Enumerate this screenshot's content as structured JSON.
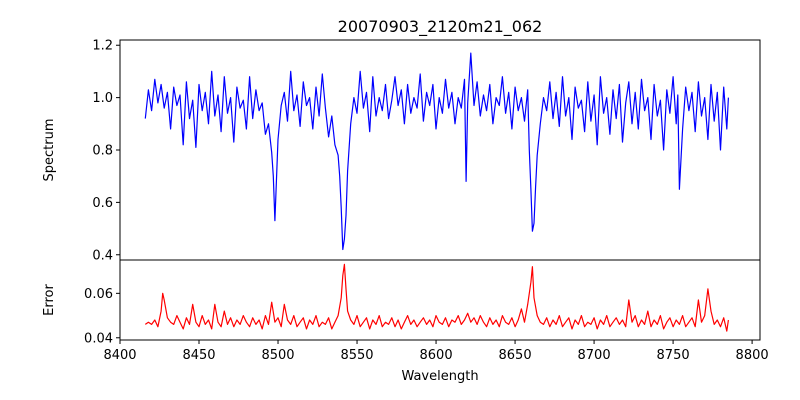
{
  "chart_data": [
    {
      "type": "line",
      "title": "20070903_2120m21_062",
      "xlabel": "",
      "ylabel": "Spectrum",
      "xlim": [
        8400,
        8805
      ],
      "ylim": [
        0.38,
        1.22
      ],
      "yticks": [
        "0.4",
        "0.6",
        "0.8",
        "1.0",
        "1.2"
      ],
      "xticks_visible": false,
      "series": [
        {
          "color": "#0000ff",
          "x": [
            8416,
            8418,
            8420,
            8422,
            8424,
            8426,
            8428,
            8430,
            8432,
            8434,
            8436,
            8438,
            8440,
            8442,
            8444,
            8446,
            8448,
            8450,
            8452,
            8454,
            8456,
            8458,
            8460,
            8462,
            8464,
            8466,
            8468,
            8470,
            8472,
            8474,
            8476,
            8478,
            8480,
            8482,
            8484,
            8486,
            8488,
            8490,
            8492,
            8494,
            8496,
            8497,
            8498,
            8499,
            8500,
            8502,
            8504,
            8506,
            8508,
            8510,
            8512,
            8514,
            8516,
            8518,
            8520,
            8522,
            8524,
            8526,
            8528,
            8530,
            8532,
            8534,
            8536,
            8538,
            8539,
            8540,
            8541,
            8542,
            8543,
            8544,
            8546,
            8548,
            8550,
            8552,
            8554,
            8556,
            8558,
            8560,
            8562,
            8564,
            8566,
            8568,
            8570,
            8572,
            8574,
            8576,
            8578,
            8580,
            8582,
            8584,
            8586,
            8588,
            8590,
            8592,
            8594,
            8596,
            8598,
            8600,
            8602,
            8604,
            8606,
            8608,
            8610,
            8612,
            8614,
            8616,
            8618,
            8619,
            8620,
            8622,
            8624,
            8626,
            8628,
            8630,
            8632,
            8634,
            8636,
            8638,
            8640,
            8642,
            8644,
            8646,
            8648,
            8650,
            8652,
            8654,
            8656,
            8658,
            8659,
            8660,
            8661,
            8662,
            8663,
            8664,
            8666,
            8668,
            8670,
            8672,
            8674,
            8676,
            8678,
            8680,
            8682,
            8684,
            8686,
            8688,
            8690,
            8692,
            8694,
            8696,
            8698,
            8700,
            8702,
            8704,
            8706,
            8708,
            8710,
            8712,
            8714,
            8716,
            8718,
            8720,
            8722,
            8724,
            8726,
            8728,
            8730,
            8732,
            8734,
            8736,
            8738,
            8740,
            8742,
            8744,
            8746,
            8748,
            8750,
            8752,
            8753,
            8754,
            8756,
            8758,
            8760,
            8762,
            8764,
            8766,
            8768,
            8770,
            8772,
            8774,
            8776,
            8778,
            8780,
            8782,
            8784,
            8785
          ],
          "y": [
            0.92,
            1.03,
            0.95,
            1.07,
            0.98,
            1.05,
            0.96,
            1.02,
            0.88,
            1.04,
            0.97,
            1.01,
            0.82,
            1.06,
            0.92,
            0.99,
            0.81,
            1.05,
            0.95,
            1.02,
            0.9,
            1.1,
            0.93,
            1.01,
            0.87,
            1.08,
            0.94,
            1.0,
            0.83,
            1.04,
            0.96,
            0.99,
            0.88,
            1.08,
            0.92,
            1.03,
            0.95,
            0.98,
            0.86,
            0.9,
            0.79,
            0.7,
            0.53,
            0.68,
            0.84,
            0.97,
            1.02,
            0.91,
            1.1,
            0.95,
            1.01,
            0.89,
            1.06,
            0.97,
            1.0,
            0.88,
            1.04,
            0.93,
            1.09,
            0.96,
            0.85,
            0.93,
            0.82,
            0.78,
            0.7,
            0.58,
            0.42,
            0.46,
            0.55,
            0.72,
            0.9,
            1.0,
            0.94,
            1.1,
            0.96,
            1.02,
            0.87,
            1.08,
            0.93,
            1.0,
            0.95,
            1.05,
            0.92,
            0.99,
            1.08,
            0.97,
            1.03,
            0.9,
            1.05,
            0.94,
            1.0,
            0.96,
            1.09,
            0.91,
            1.02,
            0.97,
            1.05,
            0.88,
            1.0,
            0.94,
            1.07,
            0.96,
            1.02,
            0.9,
            1.0,
            0.96,
            1.07,
            0.68,
            0.98,
            1.17,
            0.97,
            1.06,
            0.93,
            1.01,
            0.95,
            1.05,
            0.9,
            1.0,
            0.97,
            1.08,
            0.94,
            1.02,
            0.88,
            1.04,
            0.95,
            1.0,
            0.91,
            1.03,
            0.8,
            0.65,
            0.49,
            0.52,
            0.66,
            0.78,
            0.9,
            1.0,
            0.95,
            1.06,
            0.92,
            1.02,
            0.89,
            1.08,
            0.93,
            1.0,
            0.84,
            1.04,
            0.96,
            0.99,
            0.87,
            1.06,
            0.91,
            1.01,
            0.82,
            1.08,
            0.94,
            1.0,
            0.86,
            1.03,
            0.92,
            1.05,
            0.83,
            0.98,
            1.06,
            0.9,
            1.02,
            0.88,
            1.07,
            0.95,
            1.0,
            0.84,
            1.05,
            0.93,
            0.99,
            0.8,
            1.03,
            0.94,
            1.08,
            0.9,
            1.01,
            0.65,
            0.88,
            1.04,
            0.95,
            1.02,
            0.87,
            1.06,
            0.93,
            1.0,
            0.84,
            1.05,
            0.91,
            1.02,
            0.8,
            1.04,
            0.88,
            1.0
          ],
          "name": ""
        }
      ]
    },
    {
      "type": "line",
      "title": "",
      "xlabel": "Wavelength",
      "ylabel": "Error",
      "xlim": [
        8400,
        8805
      ],
      "ylim": [
        0.039,
        0.075
      ],
      "yticks": [
        "0.04",
        "0.06"
      ],
      "xticks": [
        "8400",
        "8450",
        "8500",
        "8550",
        "8600",
        "8650",
        "8700",
        "8750",
        "8800"
      ],
      "series": [
        {
          "color": "#ff0000",
          "x": [
            8416,
            8418,
            8420,
            8422,
            8424,
            8426,
            8427,
            8428,
            8430,
            8432,
            8434,
            8436,
            8438,
            8440,
            8442,
            8444,
            8446,
            8448,
            8450,
            8452,
            8454,
            8456,
            8458,
            8460,
            8462,
            8464,
            8466,
            8468,
            8470,
            8472,
            8474,
            8476,
            8478,
            8480,
            8482,
            8484,
            8486,
            8488,
            8490,
            8492,
            8494,
            8496,
            8498,
            8500,
            8502,
            8504,
            8506,
            8508,
            8510,
            8512,
            8514,
            8516,
            8518,
            8520,
            8522,
            8524,
            8526,
            8528,
            8530,
            8532,
            8534,
            8536,
            8538,
            8540,
            8541,
            8542,
            8543,
            8544,
            8546,
            8548,
            8550,
            8552,
            8554,
            8556,
            8558,
            8560,
            8562,
            8564,
            8566,
            8568,
            8570,
            8572,
            8574,
            8576,
            8578,
            8580,
            8582,
            8584,
            8586,
            8588,
            8590,
            8592,
            8594,
            8596,
            8598,
            8600,
            8602,
            8604,
            8606,
            8608,
            8610,
            8612,
            8614,
            8616,
            8618,
            8620,
            8622,
            8624,
            8626,
            8628,
            8630,
            8632,
            8634,
            8636,
            8638,
            8640,
            8642,
            8644,
            8646,
            8648,
            8650,
            8652,
            8654,
            8656,
            8658,
            8660,
            8661,
            8662,
            8664,
            8666,
            8668,
            8670,
            8672,
            8674,
            8676,
            8678,
            8680,
            8682,
            8684,
            8686,
            8688,
            8690,
            8692,
            8694,
            8696,
            8698,
            8700,
            8702,
            8704,
            8706,
            8708,
            8710,
            8712,
            8714,
            8716,
            8718,
            8720,
            8722,
            8724,
            8726,
            8728,
            8730,
            8732,
            8734,
            8736,
            8738,
            8740,
            8742,
            8744,
            8746,
            8748,
            8750,
            8752,
            8754,
            8756,
            8758,
            8760,
            8762,
            8764,
            8766,
            8768,
            8770,
            8772,
            8774,
            8776,
            8778,
            8780,
            8782,
            8784,
            8785
          ],
          "y": [
            0.046,
            0.047,
            0.046,
            0.048,
            0.045,
            0.052,
            0.06,
            0.057,
            0.049,
            0.047,
            0.046,
            0.05,
            0.047,
            0.044,
            0.049,
            0.046,
            0.055,
            0.047,
            0.045,
            0.05,
            0.046,
            0.048,
            0.044,
            0.055,
            0.047,
            0.045,
            0.052,
            0.046,
            0.049,
            0.045,
            0.048,
            0.046,
            0.05,
            0.047,
            0.045,
            0.049,
            0.046,
            0.048,
            0.044,
            0.05,
            0.046,
            0.056,
            0.047,
            0.049,
            0.045,
            0.055,
            0.048,
            0.046,
            0.05,
            0.045,
            0.047,
            0.049,
            0.044,
            0.048,
            0.046,
            0.05,
            0.045,
            0.047,
            0.046,
            0.049,
            0.044,
            0.047,
            0.05,
            0.058,
            0.068,
            0.073,
            0.062,
            0.052,
            0.048,
            0.046,
            0.05,
            0.045,
            0.047,
            0.049,
            0.044,
            0.048,
            0.046,
            0.05,
            0.045,
            0.047,
            0.046,
            0.049,
            0.045,
            0.048,
            0.044,
            0.047,
            0.05,
            0.046,
            0.048,
            0.045,
            0.047,
            0.049,
            0.046,
            0.048,
            0.045,
            0.05,
            0.047,
            0.046,
            0.049,
            0.045,
            0.048,
            0.047,
            0.05,
            0.046,
            0.048,
            0.051,
            0.047,
            0.049,
            0.046,
            0.05,
            0.047,
            0.045,
            0.049,
            0.046,
            0.048,
            0.045,
            0.05,
            0.047,
            0.046,
            0.049,
            0.045,
            0.048,
            0.053,
            0.047,
            0.055,
            0.065,
            0.072,
            0.058,
            0.05,
            0.047,
            0.046,
            0.049,
            0.045,
            0.048,
            0.046,
            0.05,
            0.045,
            0.047,
            0.049,
            0.044,
            0.048,
            0.046,
            0.05,
            0.045,
            0.047,
            0.046,
            0.049,
            0.044,
            0.048,
            0.046,
            0.05,
            0.045,
            0.047,
            0.049,
            0.046,
            0.048,
            0.045,
            0.057,
            0.047,
            0.05,
            0.045,
            0.048,
            0.046,
            0.052,
            0.045,
            0.048,
            0.046,
            0.05,
            0.044,
            0.047,
            0.049,
            0.045,
            0.048,
            0.046,
            0.05,
            0.045,
            0.047,
            0.049,
            0.045,
            0.057,
            0.047,
            0.05,
            0.062,
            0.052,
            0.046,
            0.048,
            0.045,
            0.049,
            0.043,
            0.048
          ],
          "name": ""
        }
      ]
    }
  ]
}
